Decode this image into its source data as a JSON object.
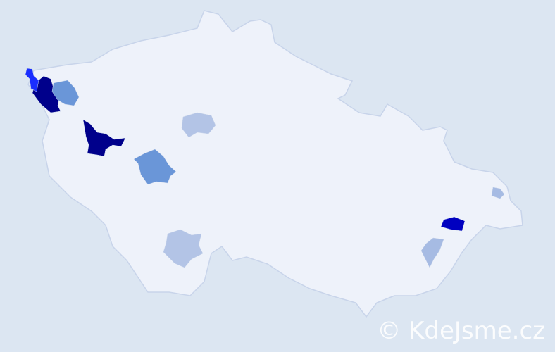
{
  "watermark": "© KdeJsme.cz",
  "colors": {
    "background": "#dce6f2",
    "country_fill": "#eef2fa",
    "border": "#c8d4ea",
    "level_highest": "#00008b",
    "level_high": "#0000c0",
    "level_bright": "#1a2eff",
    "level_medium": "#6a96d8",
    "level_low": "#b3c4e6",
    "level_lowest": "#a6bbe3"
  },
  "highlighted_regions": [
    {
      "region": "north-west-1",
      "level": "level_highest"
    },
    {
      "region": "north-west-2",
      "level": "level_bright"
    },
    {
      "region": "north-west-3",
      "level": "level_medium"
    },
    {
      "region": "west-1",
      "level": "level_highest"
    },
    {
      "region": "central-west",
      "level": "level_medium"
    },
    {
      "region": "central-north",
      "level": "level_low"
    },
    {
      "region": "south",
      "level": "level_low"
    },
    {
      "region": "east-1",
      "level": "level_high"
    },
    {
      "region": "east-2",
      "level": "level_lowest"
    },
    {
      "region": "north-east",
      "level": "level_lowest"
    }
  ]
}
